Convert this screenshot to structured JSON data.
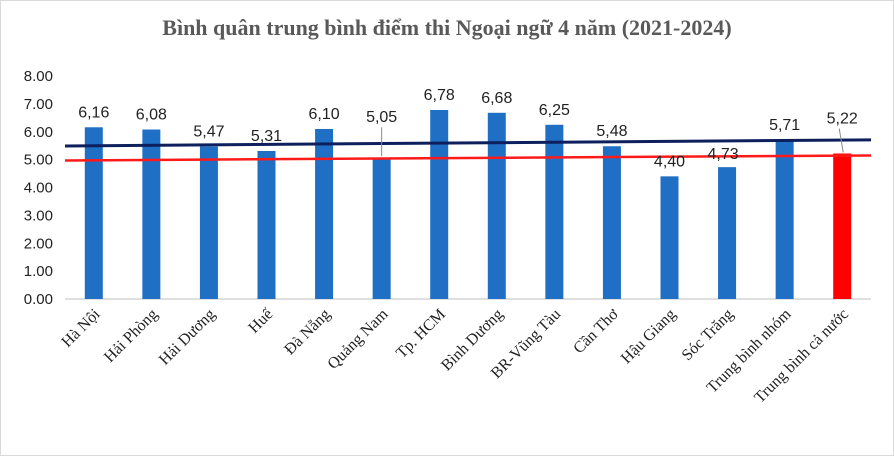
{
  "chart_data": {
    "type": "bar",
    "title": "Bình quân trung bình điểm thi Ngoại ngữ 4 năm (2021-2024)",
    "categories": [
      "Hà Nội",
      "Hải Phòng",
      "Hải Dương",
      "Huế",
      "Đà Nẵng",
      "Quảng Nam",
      "Tp. HCM",
      "Bình Dương",
      "BR-Vũng Tàu",
      "Cần Thơ",
      "Hậu Giang",
      "Sóc Trăng",
      "Trung bình nhóm",
      "Trung bình cả nước"
    ],
    "values": [
      6.16,
      6.08,
      5.47,
      5.31,
      6.1,
      5.05,
      6.78,
      6.68,
      6.25,
      5.48,
      4.4,
      4.73,
      5.71,
      5.22
    ],
    "data_labels": [
      "6,16",
      "6,08",
      "5,47",
      "5,31",
      "6,10",
      "5,05",
      "6,78",
      "6,68",
      "6,25",
      "5,48",
      "4,40",
      "4,73",
      "5,71",
      "5,22"
    ],
    "ylim": [
      0,
      8
    ],
    "yticks": [
      0,
      1,
      2,
      3,
      4,
      5,
      6,
      7,
      8
    ],
    "ytick_labels": [
      "0.00",
      "1.00",
      "2.00",
      "3.00",
      "4.00",
      "5.00",
      "6.00",
      "7.00",
      "8.00"
    ],
    "grid": false,
    "bar_color": "#1f6fc5",
    "highlight_color": "#ff0000",
    "highlight_index": 13,
    "lines": [
      {
        "color": "#0d1f5c",
        "y_start": 5.49,
        "y_end": 5.71
      },
      {
        "color": "#ff1a1a",
        "y_start": 4.97,
        "y_end": 5.15
      }
    ]
  }
}
